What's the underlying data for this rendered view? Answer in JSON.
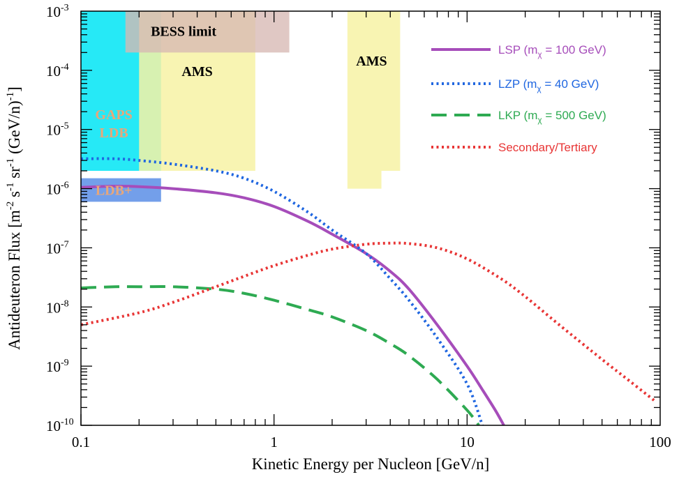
{
  "chart_data": {
    "type": "line",
    "xscale": "log",
    "yscale": "log",
    "xlim": [
      0.1,
      100
    ],
    "ylim": [
      1e-10,
      0.001
    ],
    "xlabel": "Kinetic Energy per Nucleon [GeV/n]",
    "ylabel_parts": [
      "Antideuteron Flux [m",
      "-2",
      " s",
      "-1",
      " sr",
      "-1",
      " (GeV/n)",
      "-1",
      "]"
    ],
    "x_ticks": [
      {
        "value": 0.1,
        "label": "0.1"
      },
      {
        "value": 1,
        "label": "1"
      },
      {
        "value": 10,
        "label": "10"
      },
      {
        "value": 100,
        "label": "100"
      }
    ],
    "y_ticks": [
      {
        "value": 1e-10,
        "base": "10",
        "exp": "-10"
      },
      {
        "value": 1e-09,
        "base": "10",
        "exp": "-9"
      },
      {
        "value": 1e-08,
        "base": "10",
        "exp": "-8"
      },
      {
        "value": 1e-07,
        "base": "10",
        "exp": "-7"
      },
      {
        "value": 1e-06,
        "base": "10",
        "exp": "-6"
      },
      {
        "value": 1e-05,
        "base": "10",
        "exp": "-5"
      },
      {
        "value": 0.0001,
        "base": "10",
        "exp": "-4"
      },
      {
        "value": 0.001,
        "base": "10",
        "exp": "-3"
      }
    ],
    "regions": [
      {
        "name": "GAPS LDB",
        "lines": [
          "GAPS",
          "LDB"
        ],
        "x": [
          0.1,
          0.26
        ],
        "y": [
          2e-06,
          0.001
        ],
        "color": "#00e5f5",
        "label_color": "#e8a77a",
        "label_at": [
          0.148,
          1.5e-05
        ]
      },
      {
        "name": "LDB+",
        "lines": [
          "LDB+"
        ],
        "x": [
          0.1,
          0.26
        ],
        "y": [
          6e-07,
          1.5e-06
        ],
        "color": "#5b8ee6",
        "label_color": "#e8a77a",
        "label_at": [
          0.148,
          7.8e-07
        ]
      },
      {
        "name": "AMS",
        "lines": [
          "AMS"
        ],
        "x": [
          0.2,
          0.8
        ],
        "y": [
          2e-06,
          0.001
        ],
        "color": "#f7f2a5",
        "label_color": "#000000",
        "label_at": [
          0.4,
          8e-05
        ]
      },
      {
        "name": "AMS",
        "lines": [
          "AMS"
        ],
        "x": [
          2.4,
          4.5
        ],
        "y": [
          1e-06,
          0.001
        ],
        "color": "#f7f2a5",
        "label_color": "#000000",
        "label_at": [
          3.2,
          0.00012
        ],
        "notch": {
          "x": 3.6,
          "y": 2e-06
        }
      },
      {
        "name": "BESS limit",
        "lines": [
          "BESS limit"
        ],
        "x": [
          0.17,
          1.2
        ],
        "y": [
          0.0002,
          0.001
        ],
        "color": "#d7b8b4",
        "label_color": "#000000",
        "label_at": [
          0.34,
          0.00038
        ]
      }
    ],
    "series": [
      {
        "name": "LSP (m",
        "sub": "χ",
        "tail": " = 100 GeV)",
        "color": "#a64dba",
        "style": "solid",
        "x": [
          0.1,
          0.15,
          0.2,
          0.3,
          0.5,
          0.7,
          1,
          1.5,
          2,
          3,
          4,
          5,
          7,
          10,
          12,
          14,
          15.5
        ],
        "y": [
          1.05e-06,
          1.1e-06,
          1.08e-06,
          1e-06,
          8.5e-07,
          7e-07,
          5e-07,
          2.8e-07,
          1.7e-07,
          8e-08,
          4e-08,
          2e-08,
          5e-09,
          1e-09,
          4e-10,
          1.8e-10,
          1e-10
        ]
      },
      {
        "name": "LZP (m",
        "sub": "χ",
        "tail": " = 40 GeV)",
        "color": "#1f66e0",
        "style": "dotted",
        "x": [
          0.1,
          0.15,
          0.2,
          0.3,
          0.5,
          0.7,
          1,
          1.5,
          2,
          3,
          4,
          5,
          7,
          10,
          12
        ],
        "y": [
          3.2e-06,
          3.2e-06,
          3e-06,
          2.6e-06,
          2e-06,
          1.5e-06,
          9e-07,
          4e-07,
          2e-07,
          8e-08,
          3e-08,
          1.3e-08,
          3e-09,
          5e-10,
          1e-10
        ]
      },
      {
        "name": "LKP (m",
        "sub": "χ",
        "tail": " = 500 GeV)",
        "color": "#2eaa52",
        "style": "dashed",
        "x": [
          0.1,
          0.15,
          0.2,
          0.3,
          0.5,
          0.7,
          1,
          1.5,
          2,
          3,
          4,
          5,
          7,
          10,
          11.5
        ],
        "y": [
          2.1e-08,
          2.2e-08,
          2.2e-08,
          2.2e-08,
          2e-08,
          1.7e-08,
          1.3e-08,
          9e-09,
          6.8e-09,
          4e-09,
          2.4e-09,
          1.5e-09,
          6e-10,
          1.8e-10,
          1e-10
        ]
      },
      {
        "name": "Secondary/Tertiary",
        "sub": "",
        "tail": "",
        "color": "#e83535",
        "style": "dotted",
        "x": [
          0.1,
          0.2,
          0.3,
          0.5,
          0.7,
          1,
          1.5,
          2,
          3,
          4,
          5,
          7,
          10,
          15,
          20,
          30,
          50,
          70,
          95
        ],
        "y": [
          5e-09,
          8e-09,
          1.2e-08,
          2.2e-08,
          3.3e-08,
          5e-08,
          7.5e-08,
          9.5e-08,
          1.15e-07,
          1.2e-07,
          1.18e-07,
          1e-07,
          6.5e-08,
          3e-08,
          1.5e-08,
          5e-09,
          1.3e-09,
          5.5e-10,
          2.5e-10
        ]
      }
    ],
    "legend_position": "top-right",
    "grid": false
  }
}
